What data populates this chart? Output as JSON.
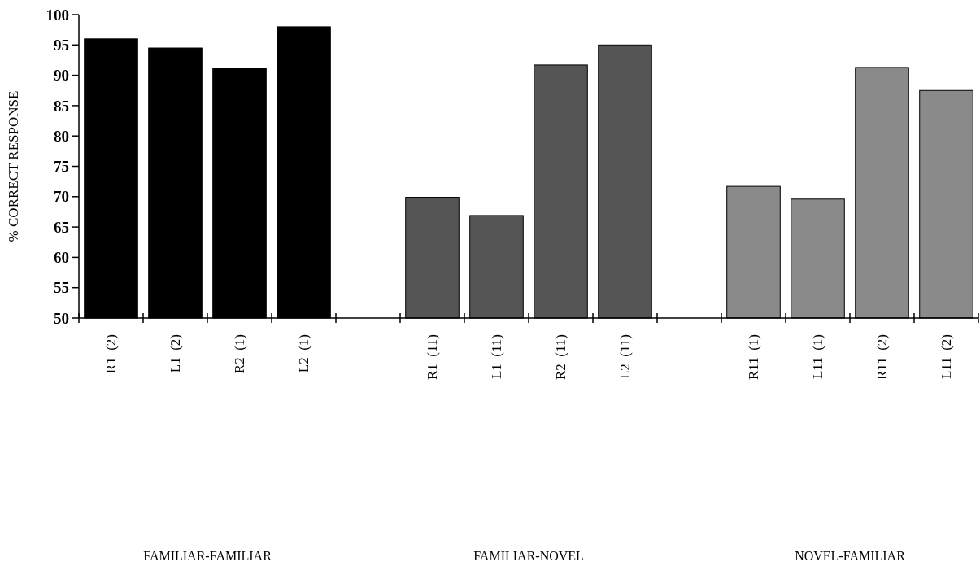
{
  "chart_data": {
    "type": "bar",
    "ylabel": "% CORRECT RESPONSE",
    "categories": [
      "R1  (2)",
      "L1  (2)",
      "R2  (1)",
      "L2  (1)",
      null,
      "R1  (11)",
      "L1  (11)",
      "R2  (11)",
      "L2  (11)",
      null,
      "R11  (1)",
      "L11  (1)",
      "R11  (2)",
      "L11  (2)"
    ],
    "values": [
      96.0,
      94.5,
      91.2,
      98.0,
      null,
      69.9,
      66.9,
      91.7,
      95.0,
      null,
      71.7,
      69.6,
      91.3,
      87.5
    ],
    "colors": [
      "#000000",
      "#000000",
      "#000000",
      "#000000",
      null,
      "#555555",
      "#555555",
      "#555555",
      "#555555",
      null,
      "#8a8a8a",
      "#8a8a8a",
      "#8a8a8a",
      "#8a8a8a"
    ],
    "annotations": [
      "FAMILIAR-FAMILIAR",
      "FAMILIAR-NOVEL",
      "NOVEL-FAMILIAR"
    ],
    "ylim": [
      50,
      100
    ],
    "yticks": [
      50,
      55,
      60,
      65,
      70,
      75,
      80,
      85,
      90,
      95,
      100
    ],
    "grid": false
  }
}
